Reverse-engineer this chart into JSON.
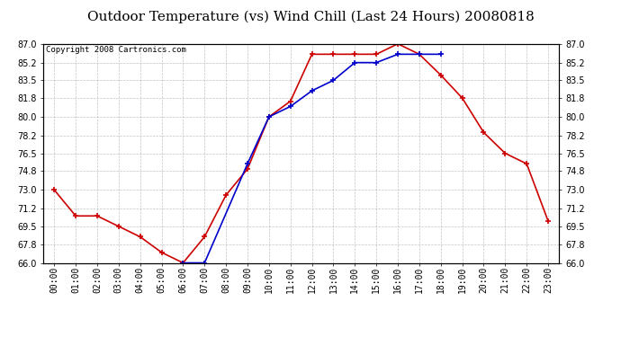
{
  "title": "Outdoor Temperature (vs) Wind Chill (Last 24 Hours) 20080818",
  "copyright": "Copyright 2008 Cartronics.com",
  "hours": [
    "00:00",
    "01:00",
    "02:00",
    "03:00",
    "04:00",
    "05:00",
    "06:00",
    "07:00",
    "08:00",
    "09:00",
    "10:00",
    "11:00",
    "12:00",
    "13:00",
    "14:00",
    "15:00",
    "16:00",
    "17:00",
    "18:00",
    "19:00",
    "20:00",
    "21:00",
    "22:00",
    "23:00"
  ],
  "temp": [
    73.0,
    70.5,
    70.5,
    69.5,
    68.5,
    67.0,
    66.0,
    68.5,
    72.5,
    75.0,
    80.0,
    81.5,
    86.0,
    86.0,
    86.0,
    86.0,
    87.0,
    86.0,
    84.0,
    81.8,
    78.5,
    76.5,
    75.5,
    70.0
  ],
  "windchill": [
    null,
    null,
    null,
    null,
    null,
    null,
    66.0,
    66.0,
    null,
    75.5,
    80.0,
    81.0,
    82.5,
    83.5,
    85.2,
    85.2,
    86.0,
    86.0,
    86.0,
    null,
    null,
    null,
    null,
    null
  ],
  "temp_color": "#cc0000",
  "windchill_color": "#0000cc",
  "ylim_min": 66.0,
  "ylim_max": 87.0,
  "yticks": [
    66.0,
    67.8,
    69.5,
    71.2,
    73.0,
    74.8,
    76.5,
    78.2,
    80.0,
    81.8,
    83.5,
    85.2,
    87.0
  ],
  "background_color": "#ffffff",
  "grid_color": "#aaaaaa",
  "title_fontsize": 11,
  "copyright_fontsize": 6.5,
  "tick_fontsize": 7
}
